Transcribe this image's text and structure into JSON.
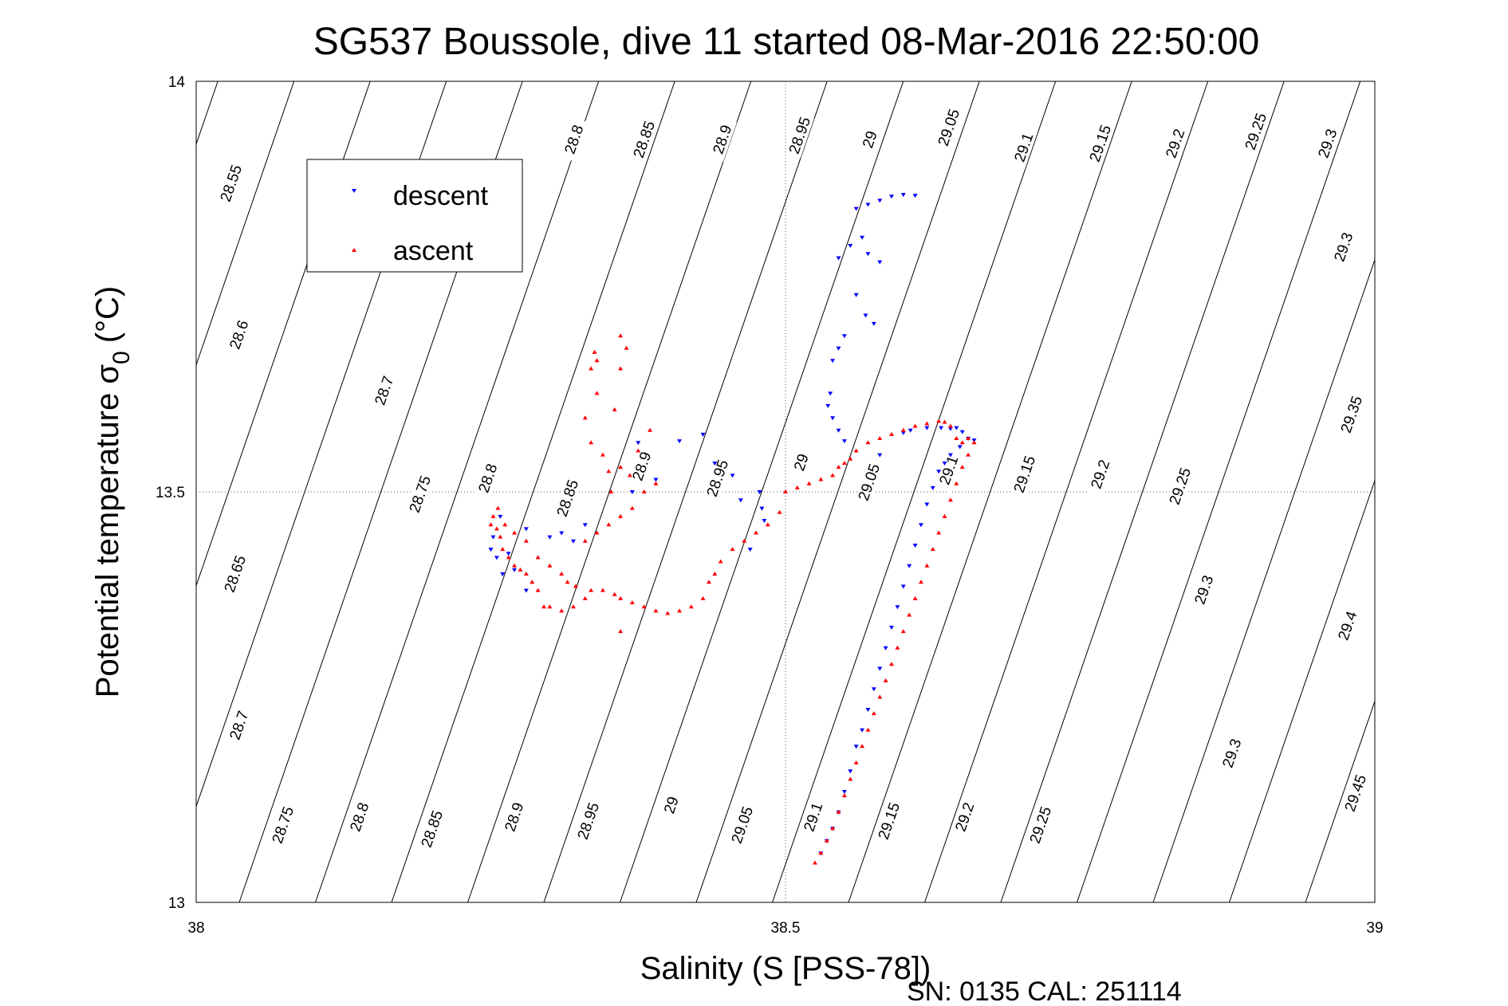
{
  "chart_data": {
    "type": "scatter",
    "title": "SG537 Boussole, dive 11 started 08-Mar-2016 22:50:00",
    "xlabel": "Salinity (S [PSS-78])",
    "ylabel_main": "Potential temperature σ",
    "ylabel_sub": "0",
    "ylabel_unit": "(°C)",
    "footer": "SN: 0135  CAL: 251114",
    "xlim": [
      38,
      39
    ],
    "ylim": [
      13,
      14
    ],
    "xticks": [
      "38",
      "38.5",
      "39"
    ],
    "yticks": [
      "13",
      "13.5",
      "14"
    ],
    "grid": "dotted at 38.5 / 13.5",
    "legend": {
      "position": "upper-left",
      "entries": [
        {
          "label": "descent",
          "color": "#0000ff",
          "marker": "triangle-down"
        },
        {
          "label": "ascent",
          "color": "#ff0000",
          "marker": "triangle-up"
        }
      ]
    },
    "series": [
      {
        "name": "descent",
        "color": "#0000ff",
        "marker": "triangle-down",
        "points": [
          [
            38.56,
            13.845
          ],
          [
            38.57,
            13.85
          ],
          [
            38.58,
            13.855
          ],
          [
            38.59,
            13.86
          ],
          [
            38.6,
            13.862
          ],
          [
            38.61,
            13.861
          ],
          [
            38.565,
            13.81
          ],
          [
            38.555,
            13.8
          ],
          [
            38.545,
            13.785
          ],
          [
            38.57,
            13.79
          ],
          [
            38.58,
            13.78
          ],
          [
            38.56,
            13.74
          ],
          [
            38.568,
            13.715
          ],
          [
            38.575,
            13.705
          ],
          [
            38.55,
            13.69
          ],
          [
            38.545,
            13.675
          ],
          [
            38.54,
            13.66
          ],
          [
            38.538,
            13.62
          ],
          [
            38.536,
            13.605
          ],
          [
            38.54,
            13.59
          ],
          [
            38.545,
            13.575
          ],
          [
            38.55,
            13.562
          ],
          [
            38.58,
            13.545
          ],
          [
            38.6,
            13.572
          ],
          [
            38.606,
            13.575
          ],
          [
            38.62,
            13.578
          ],
          [
            38.632,
            13.578
          ],
          [
            38.64,
            13.577
          ],
          [
            38.645,
            13.578
          ],
          [
            38.65,
            13.573
          ],
          [
            38.655,
            13.565
          ],
          [
            38.66,
            13.563
          ],
          [
            38.648,
            13.555
          ],
          [
            38.64,
            13.545
          ],
          [
            38.635,
            13.535
          ],
          [
            38.63,
            13.525
          ],
          [
            38.625,
            13.505
          ],
          [
            38.62,
            13.485
          ],
          [
            38.615,
            13.46
          ],
          [
            38.61,
            13.435
          ],
          [
            38.605,
            13.41
          ],
          [
            38.6,
            13.385
          ],
          [
            38.595,
            13.36
          ],
          [
            38.59,
            13.335
          ],
          [
            38.585,
            13.31
          ],
          [
            38.58,
            13.285
          ],
          [
            38.575,
            13.26
          ],
          [
            38.57,
            13.235
          ],
          [
            38.565,
            13.21
          ],
          [
            38.56,
            13.19
          ],
          [
            38.555,
            13.16
          ],
          [
            38.55,
            13.135
          ],
          [
            38.545,
            13.11
          ],
          [
            38.54,
            13.09
          ],
          [
            38.535,
            13.075
          ],
          [
            38.53,
            13.06
          ],
          [
            38.478,
            13.5
          ],
          [
            38.48,
            13.48
          ],
          [
            38.482,
            13.465
          ],
          [
            38.47,
            13.43
          ],
          [
            38.462,
            13.49
          ],
          [
            38.455,
            13.52
          ],
          [
            38.44,
            13.535
          ],
          [
            38.43,
            13.57
          ],
          [
            38.41,
            13.562
          ],
          [
            38.39,
            13.515
          ],
          [
            38.375,
            13.56
          ],
          [
            38.37,
            13.5
          ],
          [
            38.33,
            13.46
          ],
          [
            38.32,
            13.44
          ],
          [
            38.31,
            13.45
          ],
          [
            38.3,
            13.445
          ],
          [
            38.28,
            13.455
          ],
          [
            38.27,
            13.405
          ],
          [
            38.26,
            13.4
          ],
          [
            38.255,
            13.42
          ],
          [
            38.25,
            13.43
          ],
          [
            38.252,
            13.445
          ],
          [
            38.258,
            13.47
          ],
          [
            38.265,
            13.425
          ],
          [
            38.28,
            13.38
          ]
        ]
      },
      {
        "name": "ascent",
        "color": "#ff0000",
        "marker": "triangle-up",
        "points": [
          [
            38.5,
            13.5
          ],
          [
            38.51,
            13.505
          ],
          [
            38.52,
            13.51
          ],
          [
            38.53,
            13.515
          ],
          [
            38.54,
            13.52
          ],
          [
            38.545,
            13.53
          ],
          [
            38.55,
            13.535
          ],
          [
            38.555,
            13.54
          ],
          [
            38.56,
            13.55
          ],
          [
            38.57,
            13.56
          ],
          [
            38.58,
            13.565
          ],
          [
            38.59,
            13.57
          ],
          [
            38.6,
            13.575
          ],
          [
            38.61,
            13.58
          ],
          [
            38.62,
            13.583
          ],
          [
            38.63,
            13.586
          ],
          [
            38.635,
            13.585
          ],
          [
            38.64,
            13.58
          ],
          [
            38.645,
            13.565
          ],
          [
            38.65,
            13.56
          ],
          [
            38.655,
            13.565
          ],
          [
            38.66,
            13.56
          ],
          [
            38.655,
            13.545
          ],
          [
            38.65,
            13.53
          ],
          [
            38.645,
            13.51
          ],
          [
            38.64,
            13.49
          ],
          [
            38.635,
            13.47
          ],
          [
            38.63,
            13.45
          ],
          [
            38.625,
            13.43
          ],
          [
            38.62,
            13.41
          ],
          [
            38.615,
            13.39
          ],
          [
            38.61,
            13.37
          ],
          [
            38.605,
            13.35
          ],
          [
            38.6,
            13.33
          ],
          [
            38.595,
            13.31
          ],
          [
            38.59,
            13.29
          ],
          [
            38.585,
            13.27
          ],
          [
            38.58,
            13.25
          ],
          [
            38.575,
            13.23
          ],
          [
            38.57,
            13.21
          ],
          [
            38.565,
            13.19
          ],
          [
            38.56,
            13.17
          ],
          [
            38.555,
            13.15
          ],
          [
            38.55,
            13.13
          ],
          [
            38.545,
            13.11
          ],
          [
            38.54,
            13.09
          ],
          [
            38.535,
            13.075
          ],
          [
            38.53,
            13.06
          ],
          [
            38.525,
            13.048
          ],
          [
            38.495,
            13.475
          ],
          [
            38.485,
            13.46
          ],
          [
            38.475,
            13.45
          ],
          [
            38.465,
            13.44
          ],
          [
            38.455,
            13.43
          ],
          [
            38.445,
            13.415
          ],
          [
            38.44,
            13.4
          ],
          [
            38.435,
            13.39
          ],
          [
            38.43,
            13.37
          ],
          [
            38.42,
            13.36
          ],
          [
            38.41,
            13.355
          ],
          [
            38.4,
            13.352
          ],
          [
            38.39,
            13.355
          ],
          [
            38.38,
            13.36
          ],
          [
            38.37,
            13.365
          ],
          [
            38.36,
            13.37
          ],
          [
            38.355,
            13.375
          ],
          [
            38.345,
            13.38
          ],
          [
            38.335,
            13.38
          ],
          [
            38.33,
            13.37
          ],
          [
            38.32,
            13.36
          ],
          [
            38.31,
            13.355
          ],
          [
            38.3,
            13.36
          ],
          [
            38.295,
            13.36
          ],
          [
            38.29,
            13.38
          ],
          [
            38.285,
            13.39
          ],
          [
            38.28,
            13.4
          ],
          [
            38.275,
            13.405
          ],
          [
            38.27,
            13.41
          ],
          [
            38.265,
            13.42
          ],
          [
            38.26,
            13.43
          ],
          [
            38.258,
            13.445
          ],
          [
            38.255,
            13.455
          ],
          [
            38.25,
            13.46
          ],
          [
            38.252,
            13.47
          ],
          [
            38.256,
            13.48
          ],
          [
            38.262,
            13.46
          ],
          [
            38.27,
            13.45
          ],
          [
            38.28,
            13.44
          ],
          [
            38.29,
            13.42
          ],
          [
            38.3,
            13.41
          ],
          [
            38.31,
            13.4
          ],
          [
            38.315,
            13.39
          ],
          [
            38.322,
            13.385
          ],
          [
            38.33,
            13.44
          ],
          [
            38.34,
            13.45
          ],
          [
            38.35,
            13.46
          ],
          [
            38.36,
            13.47
          ],
          [
            38.37,
            13.48
          ],
          [
            38.38,
            13.5
          ],
          [
            38.39,
            13.51
          ],
          [
            38.35,
            13.525
          ],
          [
            38.345,
            13.545
          ],
          [
            38.335,
            13.56
          ],
          [
            38.33,
            13.59
          ],
          [
            38.355,
            13.6
          ],
          [
            38.36,
            13.65
          ],
          [
            38.365,
            13.675
          ],
          [
            38.36,
            13.69
          ],
          [
            38.36,
            13.53
          ],
          [
            38.352,
            13.5
          ],
          [
            38.368,
            13.52
          ],
          [
            38.375,
            13.55
          ],
          [
            38.385,
            13.575
          ],
          [
            38.34,
            13.66
          ],
          [
            38.338,
            13.67
          ],
          [
            38.335,
            13.65
          ],
          [
            38.34,
            13.62
          ],
          [
            38.36,
            13.33
          ]
        ]
      }
    ],
    "isopycnals": {
      "levels": [
        "28.55",
        "28.6",
        "28.65",
        "28.7",
        "28.75",
        "28.8",
        "28.85",
        "28.9",
        "28.95",
        "29",
        "29.05",
        "29.1",
        "29.15",
        "29.2",
        "29.25",
        "29.3",
        "29.35",
        "29.4",
        "29.45"
      ]
    }
  }
}
